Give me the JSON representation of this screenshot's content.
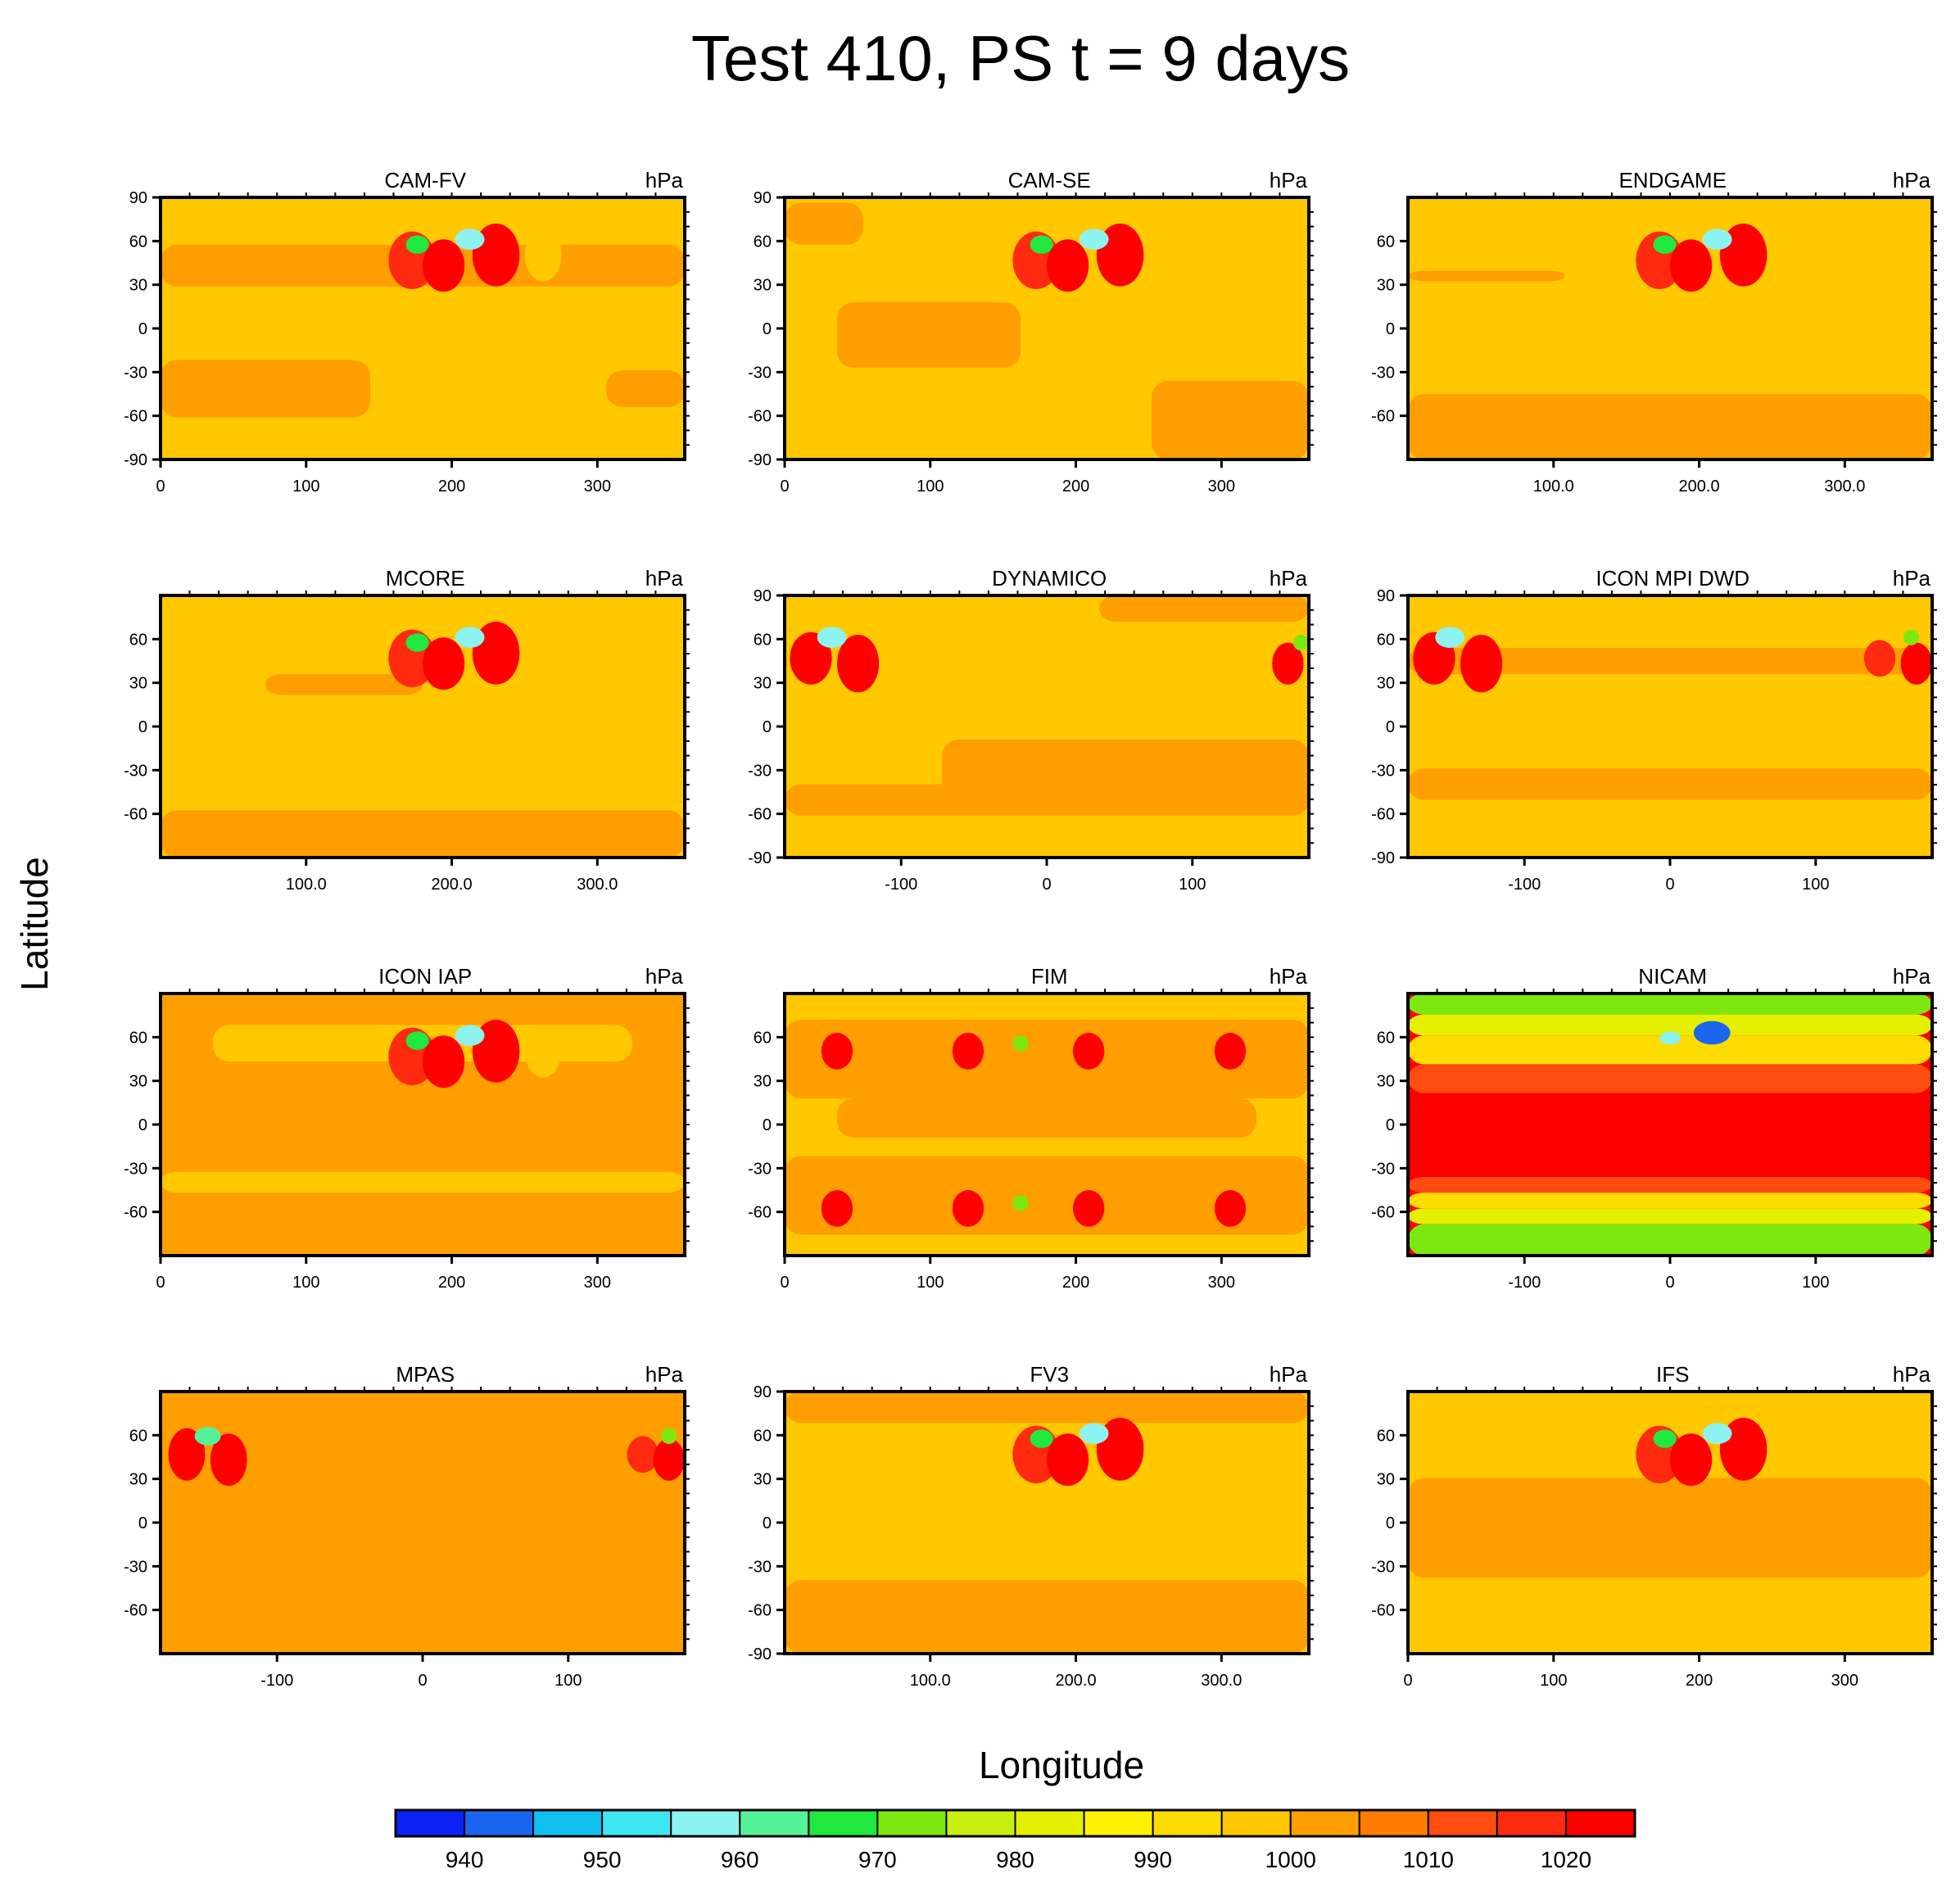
{
  "title": "Test 410, PS t = 9 days",
  "xlabel": "Longitude",
  "ylabel": "Latitude",
  "chart_data": {
    "type": "heatmap",
    "title": "Test 410, PS t = 9 days",
    "xlabel": "Longitude",
    "ylabel": "Latitude",
    "units": "hPa",
    "colorbar": {
      "labels": [
        "940",
        "950",
        "960",
        "970",
        "980",
        "990",
        "1000",
        "1010",
        "1020"
      ],
      "levels": [
        935,
        940,
        945,
        950,
        955,
        960,
        965,
        970,
        975,
        980,
        985,
        990,
        995,
        1000,
        1005,
        1010,
        1015,
        1020,
        1025
      ],
      "colors": [
        "#0a22f4",
        "#1a66f0",
        "#10bff0",
        "#3ee6f2",
        "#8cf3f0",
        "#55f29a",
        "#21e83e",
        "#7de810",
        "#c8ee12",
        "#e4f000",
        "#fff200",
        "#ffdc00",
        "#ffc800",
        "#ff9e00",
        "#ff7c00",
        "#ff4c10",
        "#ff2a10",
        "#ff0000"
      ]
    },
    "panels": [
      {
        "name": "CAM-FV",
        "units": "hPa",
        "xlim": [
          0,
          360
        ],
        "xticks": [
          "0",
          "100",
          "200",
          "300"
        ],
        "yticks": [
          "90",
          "60",
          "30",
          "0",
          "-30",
          "-60",
          "-90"
        ],
        "ylim": [
          -90,
          90
        ]
      },
      {
        "name": "CAM-SE",
        "units": "hPa",
        "xlim": [
          0,
          360
        ],
        "xticks": [
          "0",
          "100",
          "200",
          "300"
        ],
        "yticks": [
          "90",
          "60",
          "30",
          "0",
          "-30",
          "-60",
          "-90"
        ],
        "ylim": [
          -90,
          90
        ]
      },
      {
        "name": "ENDGAME",
        "units": "hPa",
        "xlim": [
          0,
          360
        ],
        "xticks": [
          "100.0",
          "200.0",
          "300.0"
        ],
        "yticks": [
          "60",
          "30",
          "0",
          "-30",
          "-60"
        ],
        "ylim": [
          -90,
          90
        ]
      },
      {
        "name": "MCORE",
        "units": "hPa",
        "xlim": [
          0,
          360
        ],
        "xticks": [
          "100.0",
          "200.0",
          "300.0"
        ],
        "yticks": [
          "60",
          "30",
          "0",
          "-30",
          "-60"
        ],
        "ylim": [
          -90,
          90
        ]
      },
      {
        "name": "DYNAMICO",
        "units": "hPa",
        "xlim": [
          -180,
          180
        ],
        "xticks": [
          "-100",
          "0",
          "100"
        ],
        "yticks": [
          "90",
          "60",
          "30",
          "0",
          "-30",
          "-60",
          "-90"
        ],
        "ylim": [
          -90,
          90
        ]
      },
      {
        "name": "ICON MPI DWD",
        "units": "hPa",
        "xlim": [
          -180,
          180
        ],
        "xticks": [
          "-100",
          "0",
          "100"
        ],
        "yticks": [
          "90",
          "60",
          "30",
          "0",
          "-30",
          "-60",
          "-90"
        ],
        "ylim": [
          -90,
          90
        ]
      },
      {
        "name": "ICON IAP",
        "units": "hPa",
        "xlim": [
          0,
          360
        ],
        "xticks": [
          "0",
          "100",
          "200",
          "300"
        ],
        "yticks": [
          "60",
          "30",
          "0",
          "-30",
          "-60"
        ],
        "ylim": [
          -90,
          90
        ]
      },
      {
        "name": "FIM",
        "units": "hPa",
        "xlim": [
          0,
          360
        ],
        "xticks": [
          "0",
          "100",
          "200",
          "300"
        ],
        "yticks": [
          "60",
          "30",
          "0",
          "-30",
          "-60"
        ],
        "ylim": [
          -90,
          90
        ]
      },
      {
        "name": "NICAM",
        "units": "hPa",
        "xlim": [
          -180,
          180
        ],
        "xticks": [
          "-100",
          "0",
          "100"
        ],
        "yticks": [
          "60",
          "30",
          "0",
          "-30",
          "-60"
        ],
        "ylim": [
          -90,
          90
        ]
      },
      {
        "name": "MPAS",
        "units": "hPa",
        "xlim": [
          -180,
          180
        ],
        "xticks": [
          "-100",
          "0",
          "100"
        ],
        "yticks": [
          "60",
          "30",
          "0",
          "-30",
          "-60"
        ],
        "ylim": [
          -90,
          90
        ]
      },
      {
        "name": "FV3",
        "units": "hPa",
        "xlim": [
          0,
          360
        ],
        "xticks": [
          "100.0",
          "200.0",
          "300.0"
        ],
        "yticks": [
          "90",
          "60",
          "30",
          "0",
          "-30",
          "-60",
          "-90"
        ],
        "ylim": [
          -90,
          90
        ]
      },
      {
        "name": "IFS",
        "units": "hPa",
        "xlim": [
          0,
          360
        ],
        "xticks": [
          "0",
          "100",
          "200",
          "300"
        ],
        "yticks": [
          "60",
          "30",
          "0",
          "-30",
          "-60"
        ],
        "ylim": [
          -90,
          90
        ]
      }
    ]
  }
}
